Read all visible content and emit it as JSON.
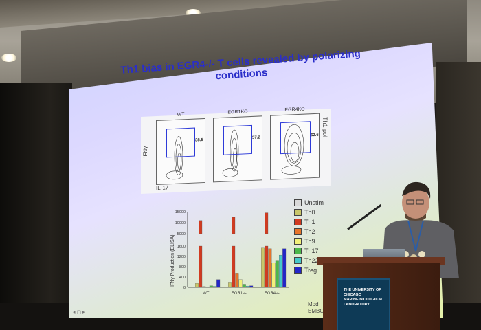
{
  "slide": {
    "title_line1": "Th1 bias in EGR4-/- T cells revealed by polarizing",
    "title_line2": "conditions",
    "flow_panels": [
      {
        "label": "WT",
        "percent": "38.5"
      },
      {
        "label": "EGR1KO",
        "percent": "57.2"
      },
      {
        "label": "EGR4KO",
        "percent": "62.6"
      }
    ],
    "flow_x_axis": "IL-17",
    "flow_y_axis": "IFNγ",
    "flow_side_label": "Th1 pol",
    "footnote_line1": "Mod",
    "footnote_line2": "EMBO"
  },
  "chart_data": {
    "type": "bar",
    "ylabel": "IFNγ Production (ELISA)",
    "y_ticks": [
      "15000",
      "10000",
      "5000",
      "1600",
      "1200",
      "800",
      "400",
      "0"
    ],
    "categories": [
      "WT",
      "EGR1-/-",
      "EGR4-/-"
    ],
    "series": [
      {
        "name": "Unstim",
        "color": "#d9d9d9",
        "values": [
          0,
          0,
          0
        ]
      },
      {
        "name": "Th0",
        "color": "#c9c76a",
        "values": [
          150,
          200,
          1550
        ]
      },
      {
        "name": "Th1",
        "color": "#d13b20",
        "values": [
          11000,
          12500,
          14500
        ]
      },
      {
        "name": "Th2",
        "color": "#e8752a",
        "values": [
          30,
          550,
          1500
        ]
      },
      {
        "name": "Th9",
        "color": "#f1f07a",
        "values": [
          20,
          300,
          950
        ]
      },
      {
        "name": "Th17",
        "color": "#4cb84a",
        "values": [
          60,
          120,
          1050
        ]
      },
      {
        "name": "Th22",
        "color": "#46c9c9",
        "values": [
          40,
          50,
          1250
        ]
      },
      {
        "name": "Treg",
        "color": "#2326c9",
        "values": [
          300,
          60,
          1500
        ]
      }
    ]
  },
  "podium_sign": {
    "line1": "THE UNIVERSITY OF CHICAGO",
    "line2": "MARINE BIOLOGICAL",
    "line3": "LABORATORY"
  }
}
